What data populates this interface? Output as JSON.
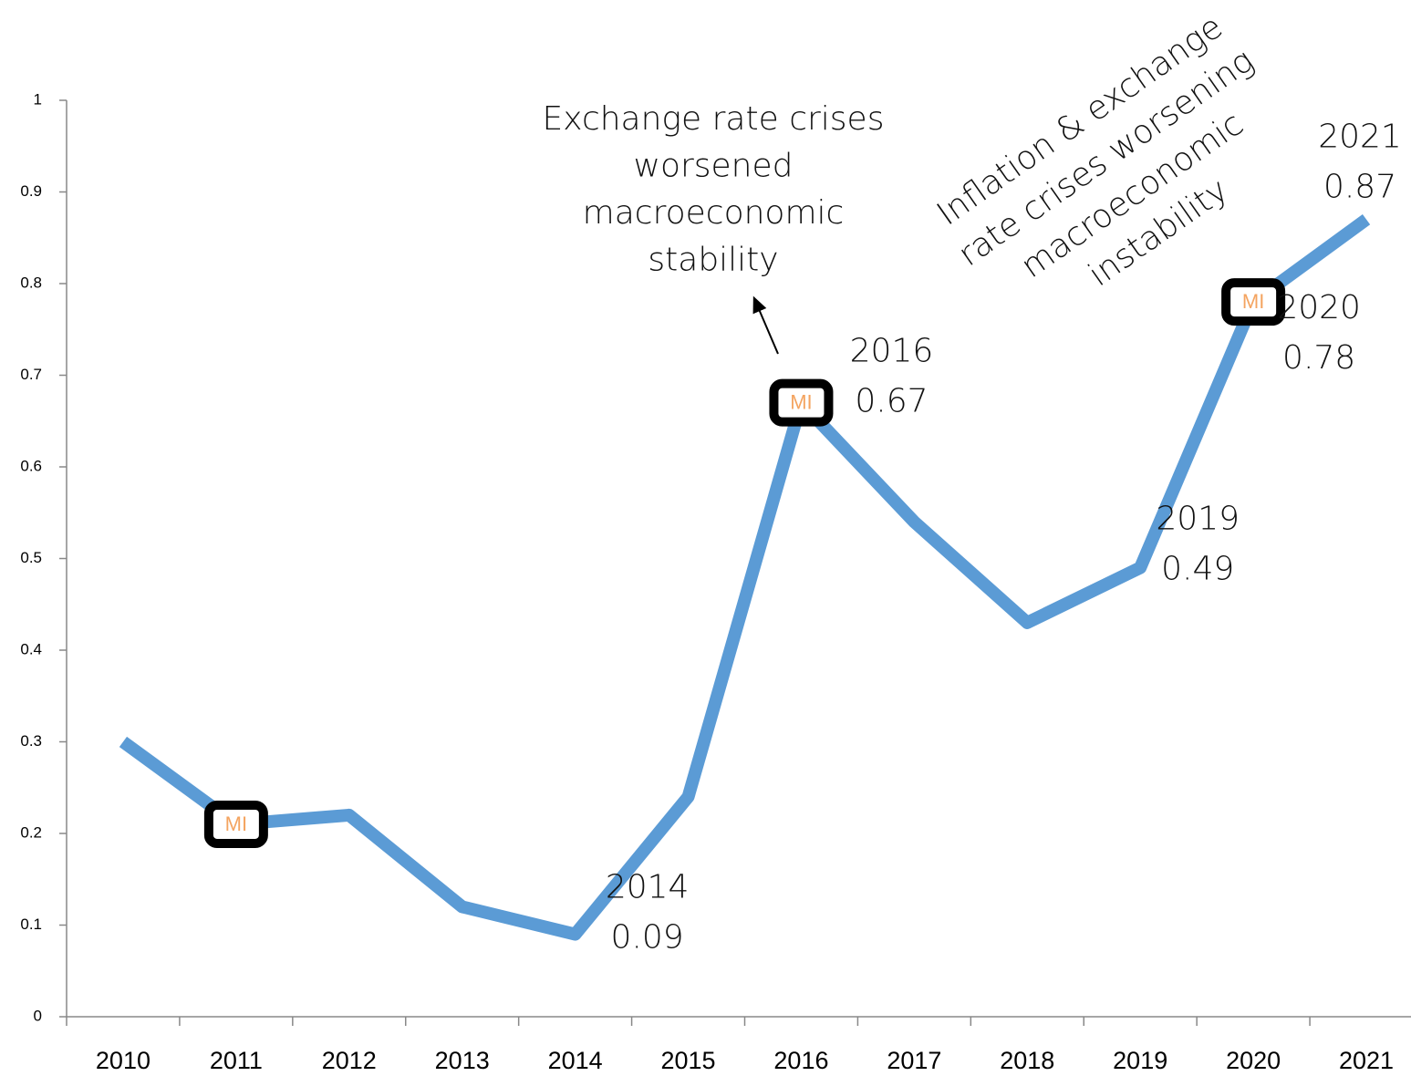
{
  "chart_data": {
    "type": "line",
    "categories": [
      "2010",
      "2011",
      "2012",
      "2013",
      "2014",
      "2015",
      "2016",
      "2017",
      "2018",
      "2019",
      "2020",
      "2021"
    ],
    "values": [
      0.3,
      0.21,
      0.22,
      0.12,
      0.09,
      0.24,
      0.67,
      0.54,
      0.43,
      0.49,
      0.78,
      0.87
    ],
    "value_labels": [
      null,
      null,
      null,
      null,
      "0.09",
      null,
      "0.67",
      null,
      null,
      "0.49",
      "0.78",
      "0.87"
    ],
    "marker_labels": [
      null,
      "MI",
      null,
      null,
      null,
      null,
      "MI",
      null,
      null,
      null,
      "MI",
      null
    ],
    "color": "#5b9bd5",
    "ylim": [
      0,
      1
    ],
    "yticks": [
      0,
      0.1,
      0.2,
      0.3,
      0.4,
      0.5,
      0.6,
      0.7,
      0.8,
      0.9,
      1
    ],
    "grid": false,
    "annotations": [
      {
        "lines": [
          "Exchange rate crises",
          "worsened",
          "macroeconomic",
          "stability"
        ]
      },
      {
        "lines": [
          "Inflation & exchange",
          "rate crises worsening",
          "macroeconomic",
          "instability"
        ]
      }
    ]
  }
}
